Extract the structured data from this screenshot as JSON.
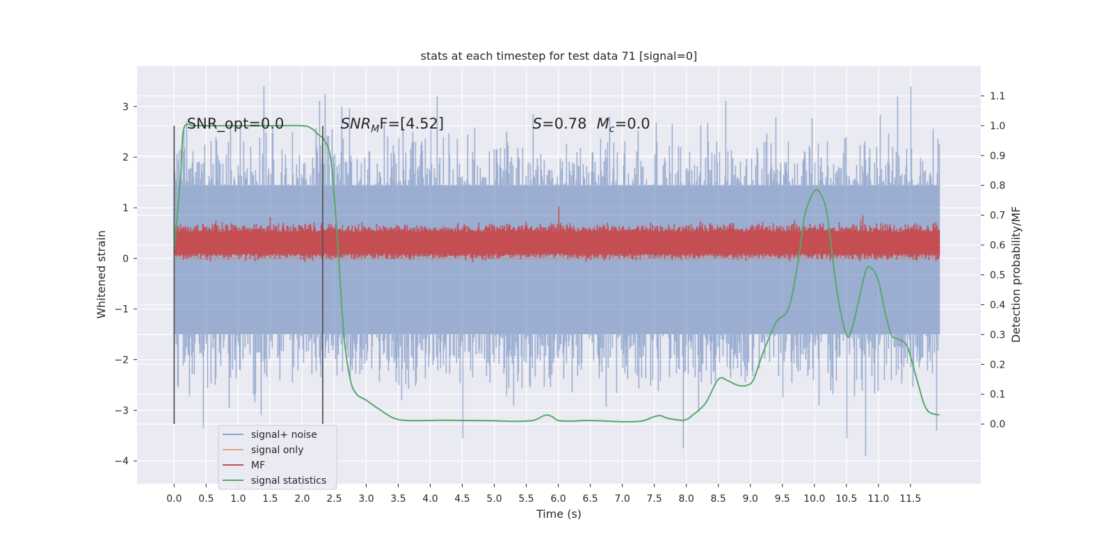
{
  "chart_data": {
    "type": "line",
    "title": "stats at each timestep for test data 71 [signal=0]",
    "xlabel": "Time (s)",
    "ylabel": "Whitened strain",
    "ylabel_right": "Detection probability/MF",
    "xlim": [
      -0.58,
      12.6
    ],
    "ylim": [
      -4.45,
      3.8
    ],
    "ylim_right": [
      -0.2,
      1.2
    ],
    "x_ticks": [
      0.0,
      0.5,
      1.0,
      1.5,
      2.0,
      2.5,
      3.0,
      3.5,
      4.0,
      4.5,
      5.0,
      5.5,
      6.0,
      6.5,
      7.0,
      7.5,
      8.0,
      8.5,
      9.0,
      9.5,
      10.0,
      10.5,
      11.0,
      11.5
    ],
    "x_tick_labels": [
      "0.0",
      "0.5",
      "1.0",
      "1.5",
      "2.0",
      "2.5",
      "3.0",
      "3.5",
      "4.0",
      "4.5",
      "5.0",
      "5.5",
      "6.0",
      "6.5",
      "7.0",
      "7.5",
      "8.0",
      "8.5",
      "9.0",
      "9.5",
      "10.0",
      "10.5",
      "11.0",
      "11.5"
    ],
    "y_ticks": [
      -4,
      -3,
      -2,
      -1,
      0,
      1,
      2,
      3
    ],
    "y_tick_labels": [
      "−4",
      "−3",
      "−2",
      "−1",
      "0",
      "1",
      "2",
      "3"
    ],
    "y_ticks_right": [
      0.0,
      0.1,
      0.2,
      0.3,
      0.4,
      0.5,
      0.6,
      0.7,
      0.8,
      0.9,
      1.0,
      1.1
    ],
    "y_tick_labels_right": [
      "0.0",
      "0.1",
      "0.2",
      "0.3",
      "0.4",
      "0.5",
      "0.6",
      "0.7",
      "0.8",
      "0.9",
      "1.0",
      "1.1"
    ],
    "grid": true,
    "legend_position": "bottom-left",
    "annotations": [
      {
        "text": "SNR_opt=0.0",
        "x": 0.2,
        "y_right": 0.99
      },
      {
        "text": "SNR",
        "sub": "M",
        "after": "F=[4.52]",
        "italic": true,
        "x": 2.6,
        "y_right": 0.99
      },
      {
        "text": "S",
        "after": "=0.78",
        "italic": true,
        "x": 5.6,
        "y_right": 0.99
      },
      {
        "text": "M",
        "sub": "c",
        "after": "=0.0",
        "italic": true,
        "x": 6.6,
        "y_right": 0.99
      }
    ],
    "vertical_markers": [
      {
        "x": 0.0,
        "y_from": -3.27,
        "y_to": 2.62
      },
      {
        "x": 2.32,
        "y_from": -3.27,
        "y_to": 2.62
      }
    ],
    "series": [
      {
        "name": "signal+ noise",
        "color": "#4c72b0",
        "axis": "left",
        "x_range": [
          0.0,
          11.95
        ],
        "typical_range": [
          -1.5,
          1.45
        ],
        "extremes": [
          {
            "x": 0.45,
            "y": -3.35
          },
          {
            "x": 0.85,
            "y": -2.95
          },
          {
            "x": 1.4,
            "y": 3.4
          },
          {
            "x": 2.35,
            "y": 3.25
          },
          {
            "x": 4.1,
            "y": 3.2
          },
          {
            "x": 4.5,
            "y": -3.55
          },
          {
            "x": 5.6,
            "y": 2.85
          },
          {
            "x": 7.95,
            "y": -3.75
          },
          {
            "x": 10.5,
            "y": -3.55
          },
          {
            "x": 10.8,
            "y": -3.9
          },
          {
            "x": 11.3,
            "y": 3.2
          },
          {
            "x": 11.5,
            "y": 3.4
          },
          {
            "x": 11.9,
            "y": -3.4
          }
        ]
      },
      {
        "name": "signal only",
        "color": "#dd8452",
        "axis": "left",
        "x_range": [
          0.0,
          11.95
        ],
        "values_constant": 0.0
      },
      {
        "name": "MF",
        "color": "#c44e52",
        "axis": "left",
        "x_range": [
          0.0,
          11.95
        ],
        "typical_range": [
          0.02,
          0.62
        ],
        "peaks": [
          {
            "x": 6.0,
            "y": 1.02
          },
          {
            "x": 1.5,
            "y": 0.82
          },
          {
            "x": 10.75,
            "y": 0.85
          }
        ]
      },
      {
        "name": "signal statistics",
        "color": "#55a868",
        "axis": "right",
        "x": [
          0.0,
          0.1,
          0.15,
          0.3,
          0.5,
          1.0,
          1.5,
          2.0,
          2.15,
          2.25,
          2.35,
          2.45,
          2.55,
          2.65,
          2.75,
          2.85,
          3.0,
          3.2,
          3.5,
          4.0,
          4.2,
          4.5,
          5.0,
          5.3,
          5.6,
          5.8,
          5.9,
          6.0,
          6.2,
          6.5,
          7.0,
          7.3,
          7.5,
          7.6,
          7.7,
          7.9,
          8.0,
          8.1,
          8.3,
          8.5,
          8.65,
          8.8,
          8.95,
          9.05,
          9.2,
          9.4,
          9.6,
          9.75,
          9.85,
          10.0,
          10.1,
          10.2,
          10.35,
          10.5,
          10.6,
          10.8,
          10.9,
          11.0,
          11.1,
          11.2,
          11.3,
          11.45,
          11.6,
          11.75,
          11.95
        ],
        "values": [
          0.58,
          0.83,
          0.99,
          1.0,
          1.0,
          1.0,
          1.0,
          1.0,
          0.99,
          0.97,
          0.95,
          0.88,
          0.62,
          0.3,
          0.15,
          0.1,
          0.08,
          0.05,
          0.015,
          0.012,
          0.013,
          0.012,
          0.011,
          0.009,
          0.012,
          0.03,
          0.025,
          0.012,
          0.01,
          0.012,
          0.008,
          0.01,
          0.025,
          0.028,
          0.02,
          0.013,
          0.015,
          0.03,
          0.07,
          0.15,
          0.145,
          0.13,
          0.13,
          0.15,
          0.24,
          0.34,
          0.39,
          0.55,
          0.7,
          0.78,
          0.77,
          0.7,
          0.45,
          0.3,
          0.33,
          0.51,
          0.52,
          0.48,
          0.38,
          0.3,
          0.285,
          0.26,
          0.15,
          0.05,
          0.03
        ]
      }
    ]
  }
}
